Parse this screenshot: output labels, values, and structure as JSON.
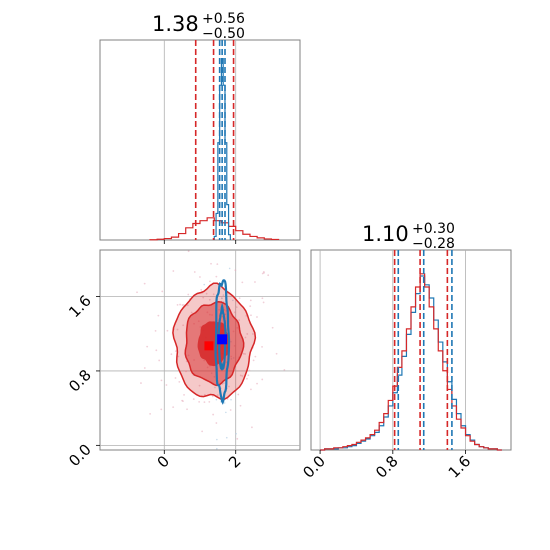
{
  "chart_data": [
    {
      "type": "step-histogram",
      "panel": "top-left marginal (parameter 1)",
      "title": {
        "value": "1.38",
        "plus": "+0.56",
        "minus": "−0.50"
      },
      "xlim": [
        -1.8,
        3.8
      ],
      "series": [
        {
          "name": "",
          "color": "#d62728",
          "bins": [
            -0.4,
            -0.2,
            0.0,
            0.2,
            0.4,
            0.6,
            0.8,
            1.0,
            1.2,
            1.4,
            1.6,
            1.8,
            2.0,
            2.2,
            2.4,
            2.6,
            2.8,
            3.0,
            3.2
          ],
          "counts": [
            0.3,
            1,
            2,
            4,
            9,
            17,
            23,
            27,
            31,
            27,
            24,
            19,
            13,
            8,
            5,
            3,
            1.5,
            0.8
          ],
          "quantiles": [
            0.88,
            1.38,
            1.94
          ]
        },
        {
          "name": "",
          "color": "#1f77b4",
          "bins": [
            1.4,
            1.45,
            1.5,
            1.55,
            1.6,
            1.65,
            1.7,
            1.75,
            1.8,
            1.85
          ],
          "counts": [
            4,
            30,
            110,
            175,
            205,
            175,
            110,
            40,
            6
          ],
          "quantiles": [
            1.55,
            1.62,
            1.7
          ]
        }
      ]
    },
    {
      "type": "step-histogram",
      "panel": "bottom-right marginal (parameter 2)",
      "title": {
        "value": "1.10",
        "plus": "+0.30",
        "minus": "−0.28"
      },
      "xlim": [
        -0.1,
        2.1
      ],
      "xticks": [
        "0.0",
        "0.8",
        "1.6"
      ],
      "series": [
        {
          "name": "",
          "color": "#d62728",
          "bins": [
            0.0,
            0.05,
            0.1,
            0.15,
            0.2,
            0.25,
            0.3,
            0.35,
            0.4,
            0.45,
            0.5,
            0.55,
            0.6,
            0.65,
            0.7,
            0.75,
            0.8,
            0.85,
            0.9,
            0.95,
            1.0,
            1.05,
            1.1,
            1.15,
            1.2,
            1.25,
            1.3,
            1.35,
            1.4,
            1.45,
            1.5,
            1.55,
            1.6,
            1.65,
            1.7,
            1.75,
            1.8,
            1.85,
            1.9,
            1.95,
            2.0
          ],
          "counts": [
            0,
            1,
            1,
            2,
            2,
            3,
            4,
            5,
            7,
            9,
            11,
            14,
            18,
            25,
            33,
            45,
            58,
            75,
            90,
            110,
            130,
            148,
            160,
            148,
            130,
            110,
            90,
            72,
            55,
            40,
            28,
            20,
            13,
            8,
            5,
            3,
            2,
            1,
            1,
            0
          ],
          "quantiles": [
            0.82,
            1.1,
            1.4
          ]
        },
        {
          "name": "",
          "color": "#1f77b4",
          "bins": [
            0.0,
            0.05,
            0.1,
            0.15,
            0.2,
            0.25,
            0.3,
            0.35,
            0.4,
            0.45,
            0.5,
            0.55,
            0.6,
            0.65,
            0.7,
            0.75,
            0.8,
            0.85,
            0.9,
            0.95,
            1.0,
            1.05,
            1.1,
            1.15,
            1.2,
            1.25,
            1.3,
            1.35,
            1.4,
            1.45,
            1.5,
            1.55,
            1.6,
            1.65,
            1.7,
            1.75,
            1.8,
            1.85,
            1.9,
            1.95,
            2.0
          ],
          "counts": [
            0,
            1,
            1,
            1,
            2,
            2,
            3,
            4,
            6,
            8,
            10,
            13,
            16,
            22,
            30,
            40,
            52,
            68,
            85,
            105,
            125,
            142,
            158,
            150,
            138,
            118,
            98,
            80,
            62,
            46,
            33,
            22,
            14,
            9,
            5,
            3,
            2,
            1,
            1,
            0
          ],
          "quantiles": [
            0.86,
            1.14,
            1.45
          ]
        }
      ]
    },
    {
      "type": "2d-density",
      "panel": "bottom-left joint (parameter 1 vs parameter 2)",
      "xlim": [
        -1.8,
        3.8
      ],
      "ylim": [
        -0.05,
        2.1
      ],
      "xticks": [
        "0",
        "2"
      ],
      "yticks": [
        "0.0",
        "0.8",
        "1.6"
      ],
      "series": [
        {
          "name": "",
          "color": "#d62728",
          "center": [
            1.38,
            1.1
          ],
          "sigma": [
            0.55,
            0.3
          ],
          "levels": [
            {
              "k": 0.8,
              "fill": "#d62728",
              "alpha": 0.85
            },
            {
              "k": 1.45,
              "fill": "#d62728",
              "alpha": 0.5
            },
            {
              "k": 2.0,
              "fill": "#d62728",
              "alpha": 0.25
            }
          ]
        },
        {
          "name": "",
          "color": "#1f77b4",
          "center": [
            1.62,
            1.14
          ],
          "sigma": [
            0.09,
            0.3
          ],
          "levels": [
            {
              "k": 1.0
            },
            {
              "k": 2.0
            }
          ]
        }
      ],
      "markers": [
        {
          "name": "",
          "color": "#ff0000",
          "x": 1.25,
          "y": 1.07
        },
        {
          "name": "",
          "color": "#0000ff",
          "x": 1.62,
          "y": 1.14
        }
      ]
    }
  ],
  "colors": {
    "red": "#d62728",
    "blue": "#1f77b4",
    "grid": "#b0b0b0",
    "frame": "#808080"
  }
}
